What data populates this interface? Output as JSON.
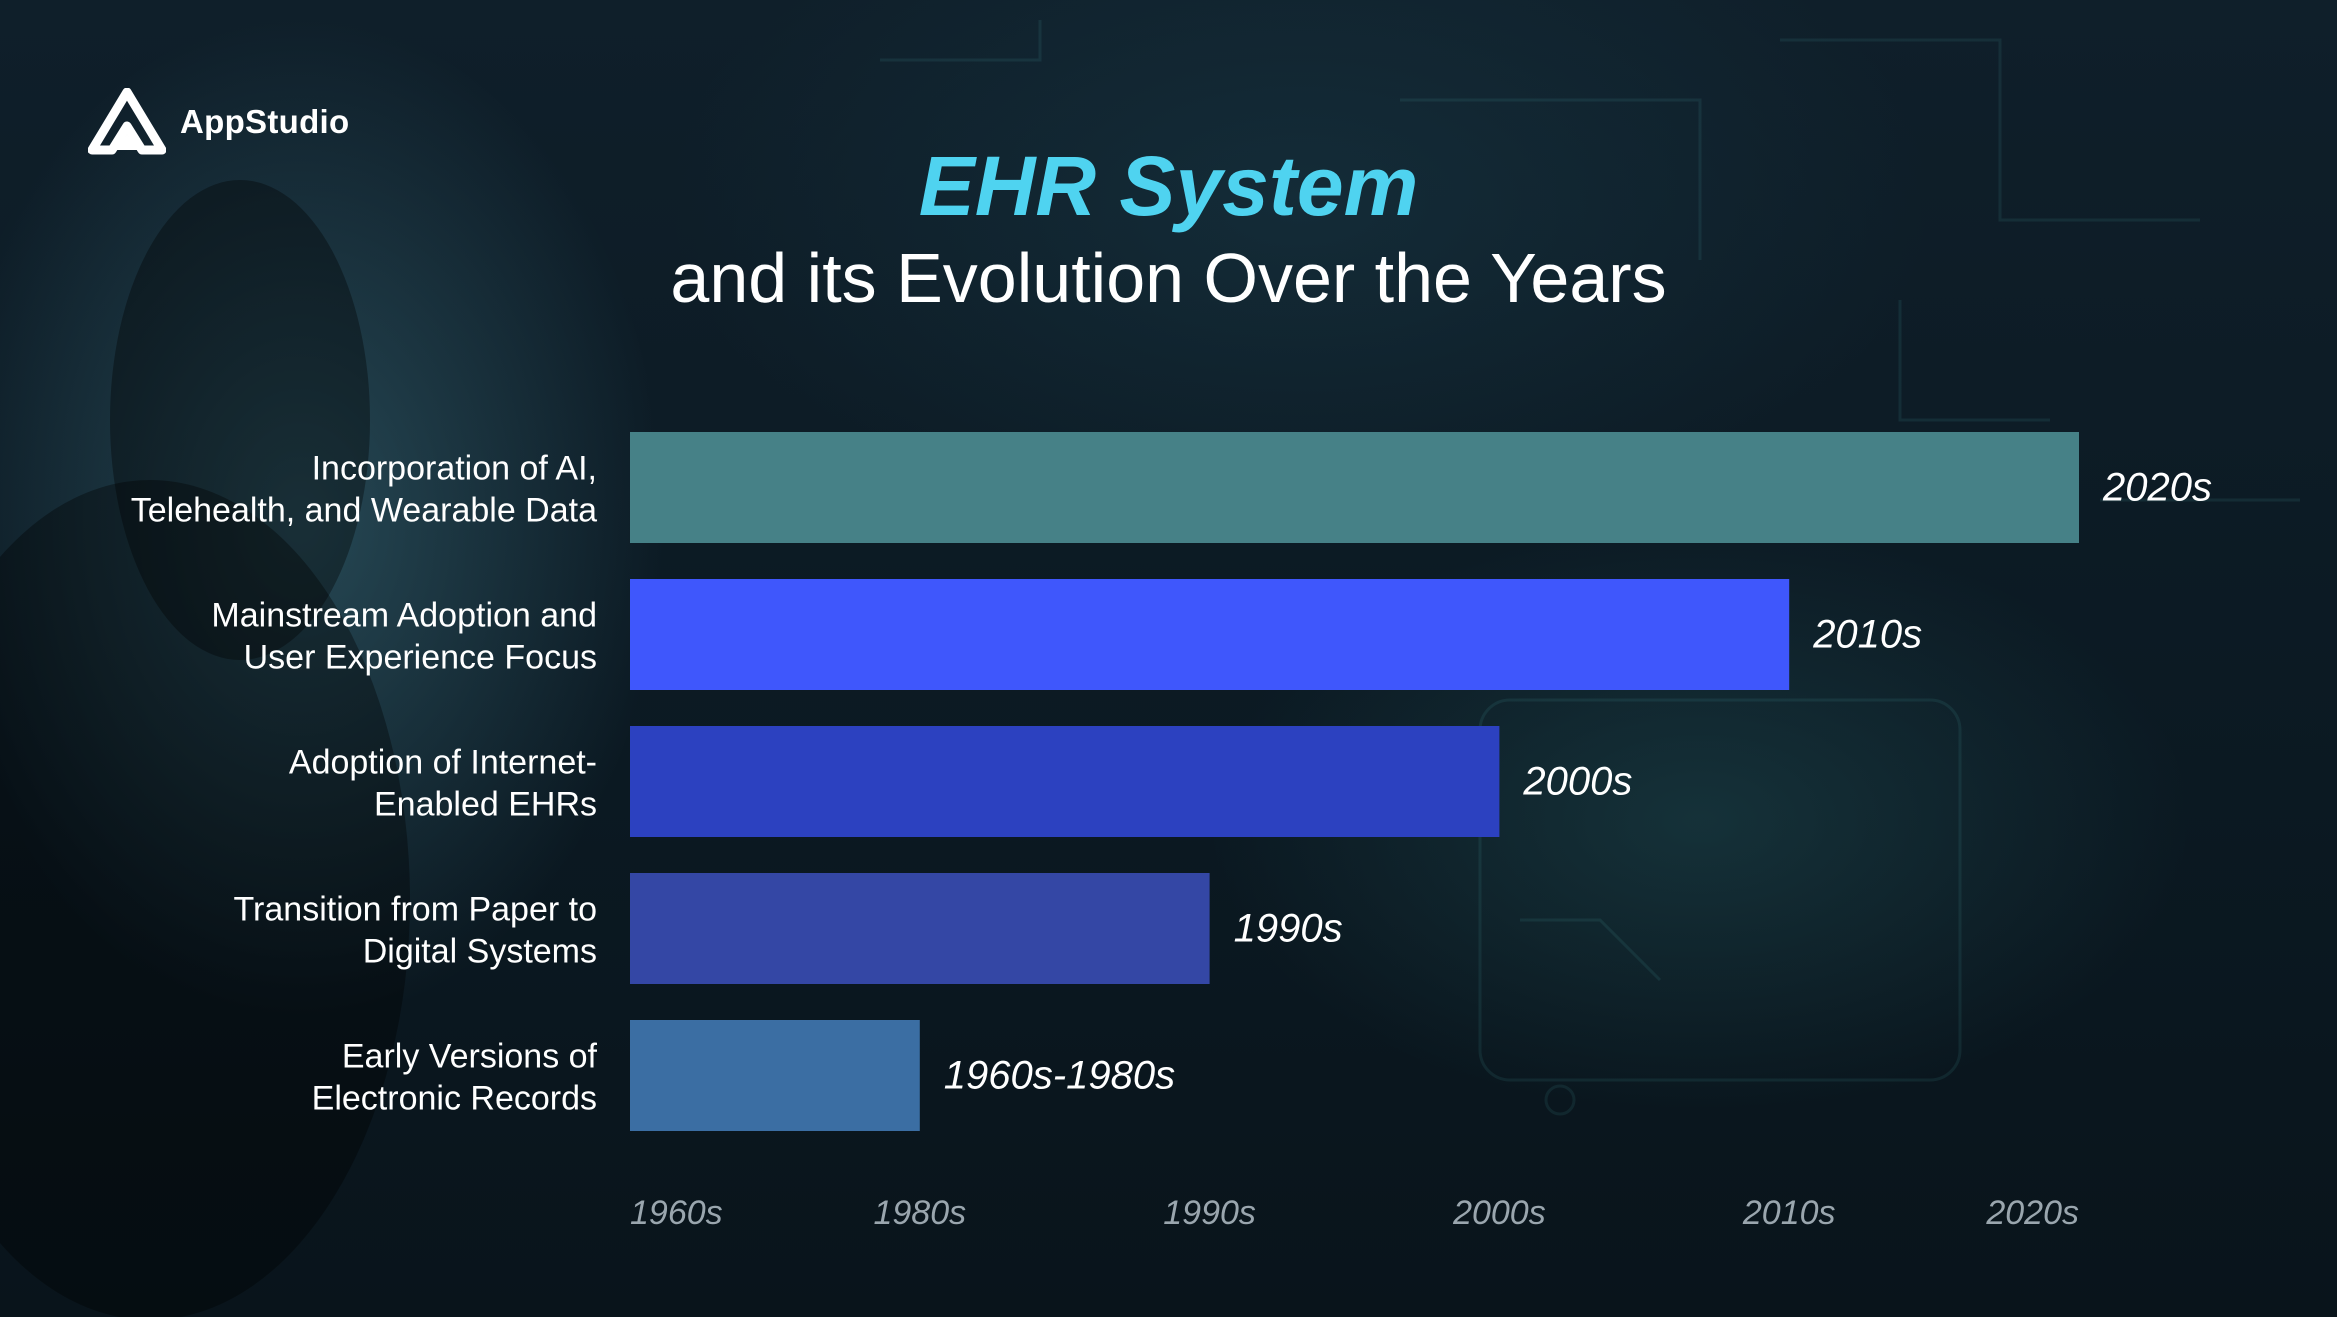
{
  "brand": {
    "name": "AppStudio",
    "logo_icon": "appstudio-logo-icon"
  },
  "title": "EHR System",
  "subtitle": "and its Evolution Over the Years",
  "colors": {
    "title": "#4fd3f0",
    "text": "#ffffff",
    "tick": "#9aa6ae"
  },
  "chart_data": {
    "type": "bar",
    "orientation": "horizontal",
    "title": "EHR System",
    "subtitle": "and its Evolution Over the Years",
    "xlabel": "",
    "ylabel": "",
    "x_ticks": [
      "1960s",
      "1980s",
      "1990s",
      "2000s",
      "2010s",
      "2020s"
    ],
    "xlim": [
      0,
      5
    ],
    "grid": false,
    "legend": "none",
    "categories": [
      [
        "Incorporation of AI,",
        "Telehealth, and Wearable Data"
      ],
      [
        "Mainstream Adoption and",
        "User Experience Focus"
      ],
      [
        "Adoption of Internet-",
        "Enabled EHRs"
      ],
      [
        "Transition from Paper to",
        "Digital Systems"
      ],
      [
        "Early Versions of",
        "Electronic Records"
      ]
    ],
    "values": [
      5,
      4,
      3,
      2,
      1
    ],
    "value_labels": [
      "2020s",
      "2010s",
      "2000s",
      "1990s",
      "1960s-1980s"
    ],
    "bar_colors": [
      "#468187",
      "#3f57fc",
      "#2c41c0",
      "#3447a5",
      "#3b6ea3"
    ]
  }
}
